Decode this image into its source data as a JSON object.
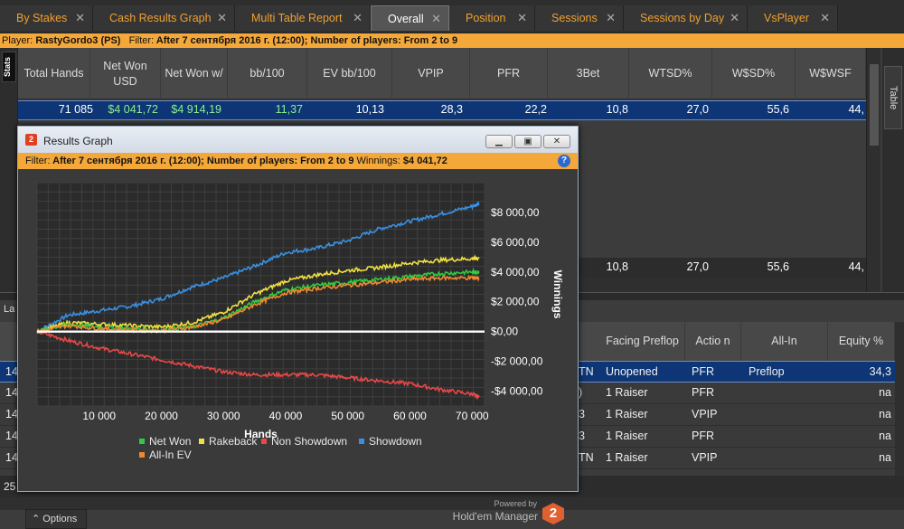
{
  "tabs": [
    {
      "label": "By Stakes",
      "close": "✕"
    },
    {
      "label": "Cash Results Graph",
      "close": "✕"
    },
    {
      "label": "Multi Table Report",
      "close": "✕"
    },
    {
      "label": "Overall",
      "close": "✕"
    },
    {
      "label": "Position",
      "close": "✕"
    },
    {
      "label": "Sessions",
      "close": "✕"
    },
    {
      "label": "Sessions by Day",
      "close": "✕"
    },
    {
      "label": "VsPlayer",
      "close": "✕"
    }
  ],
  "filterbar": {
    "player_label": "Player:",
    "player": "RastyGordo3 (PS)",
    "filter_label": "Filter:",
    "filter": "After 7 сентября 2016 г. (12:00); Number of players: From 2 to 9"
  },
  "side": {
    "stats": "Stats",
    "table": "Table"
  },
  "stats": {
    "headers": [
      "Total Hands",
      "Net Won USD",
      "Net Won w/",
      "bb/100",
      "EV bb/100",
      "VPIP",
      "PFR",
      "3Bet",
      "WTSD%",
      "W$SD%",
      "W$WSF"
    ],
    "row": [
      "71 085",
      "$4 041,72",
      "$4 914,19",
      "11,37",
      "10,13",
      "28,3",
      "22,2",
      "10,8",
      "27,0",
      "55,6",
      "44,"
    ],
    "totals": [
      "10,8",
      "27,0",
      "55,6",
      "44,"
    ]
  },
  "lower": {
    "tab_stub": "La",
    "headers": [
      "Facing Preflop",
      "Actio n",
      "All-In",
      "Equity %"
    ],
    "rows": [
      {
        "left": "14",
        "pos": "TN",
        "facing": "Unopened",
        "action": "PFR",
        "allin": "Preflop",
        "equity": "34,3"
      },
      {
        "left": "14",
        "pos": ")",
        "facing": "1 Raiser",
        "action": "PFR",
        "allin": "",
        "equity": "na"
      },
      {
        "left": "14",
        "pos": "3",
        "facing": "1 Raiser",
        "action": "VPIP",
        "allin": "",
        "equity": "na"
      },
      {
        "left": "14",
        "pos": "3",
        "facing": "1 Raiser",
        "action": "PFR",
        "allin": "",
        "equity": "na"
      },
      {
        "left": "14",
        "pos": "TN",
        "facing": "1 Raiser",
        "action": "VPIP",
        "allin": "",
        "equity": "na"
      }
    ],
    "footer_left": "25"
  },
  "graph_window": {
    "logo": "2",
    "title": "Results Graph",
    "filter_label": "Filter:",
    "filter": "After 7 сентября 2016 г. (12:00); Number of players: From 2 to 9",
    "winnings_label": "Winnings:",
    "winnings": "$4 041,72",
    "help": "?",
    "options": "Options",
    "powered": "Powered by",
    "brand": "Hold'em Manager",
    "brand_logo": "2"
  },
  "chart_data": {
    "type": "line",
    "xlabel": "Hands",
    "ylabel": "Winnings",
    "xlim": [
      0,
      72000
    ],
    "ylim": [
      -5000,
      10000
    ],
    "xticks": [
      10000,
      20000,
      30000,
      40000,
      50000,
      60000,
      70000
    ],
    "xtick_labels": [
      "10 000",
      "20 000",
      "30 000",
      "40 000",
      "50 000",
      "60 000",
      "70 000"
    ],
    "yticks": [
      8000,
      6000,
      4000,
      2000,
      0,
      -2000,
      -4000
    ],
    "ytick_labels": [
      "$8 000,00",
      "$6 000,00",
      "$4 000,00",
      "$2 000,00",
      "$0,00",
      "-$2 000,00",
      "-$4 000,00"
    ],
    "x": [
      0,
      5000,
      10000,
      15000,
      20000,
      25000,
      30000,
      35000,
      40000,
      45000,
      50000,
      55000,
      60000,
      65000,
      70000,
      71085
    ],
    "series": [
      {
        "name": "Net Won",
        "color": "#2ecc40",
        "values": [
          0,
          500,
          300,
          200,
          100,
          300,
          900,
          2000,
          2800,
          3100,
          3300,
          3500,
          3700,
          3900,
          4000,
          4041
        ]
      },
      {
        "name": "Rakeback",
        "color": "#f0e040",
        "values": [
          0,
          600,
          500,
          400,
          300,
          600,
          1300,
          2500,
          3400,
          3800,
          4100,
          4300,
          4600,
          4800,
          4900,
          4914
        ]
      },
      {
        "name": "Non Showdown",
        "color": "#e84848",
        "values": [
          0,
          -600,
          -1100,
          -1500,
          -1900,
          -2300,
          -2700,
          -2900,
          -2900,
          -2900,
          -3100,
          -3300,
          -3500,
          -3900,
          -4200,
          -4400
        ]
      },
      {
        "name": "Showdown",
        "color": "#3a90e0",
        "values": [
          0,
          1100,
          1400,
          1700,
          2200,
          3000,
          3600,
          4400,
          5300,
          5600,
          6100,
          6900,
          7400,
          7900,
          8400,
          8600
        ]
      },
      {
        "name": "All-In EV",
        "color": "#f08830",
        "values": [
          0,
          400,
          200,
          100,
          50,
          300,
          800,
          1800,
          2600,
          2900,
          3100,
          3300,
          3500,
          3600,
          3600,
          3600
        ]
      }
    ],
    "legend_position": "bottom",
    "grid": true
  }
}
